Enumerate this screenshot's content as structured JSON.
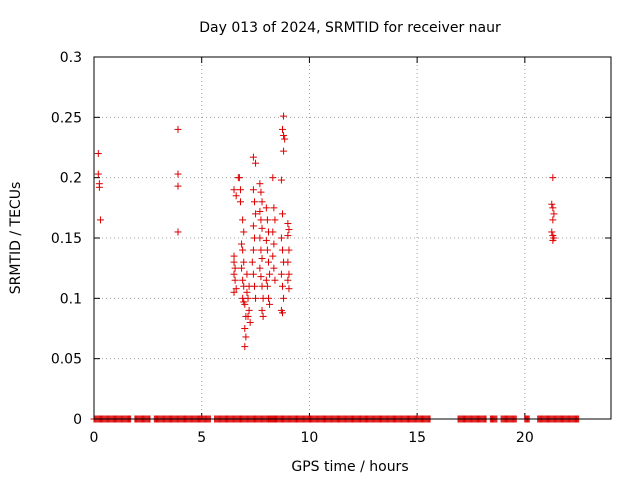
{
  "chart_data": {
    "type": "scatter",
    "title": "Day 013 of 2024, SRMTID for receiver naur",
    "xlabel": "GPS time / hours",
    "ylabel": "SRMTID / TECUs",
    "xlim": [
      0,
      24
    ],
    "ylim": [
      0,
      0.3
    ],
    "x_ticks": [
      0,
      5,
      10,
      15,
      20
    ],
    "x_tick_labels": [
      "0",
      "5",
      "10",
      "15",
      "20"
    ],
    "y_ticks": [
      0,
      0.05,
      0.1,
      0.15,
      0.2,
      0.25,
      0.3
    ],
    "y_tick_labels": [
      "0",
      "0.05",
      "0.1",
      "0.15",
      "0.2",
      "0.25",
      "0.3"
    ],
    "grid": true,
    "marker": "+",
    "color": "#dd0000",
    "series": [
      {
        "name": "SRMTID",
        "points": [
          [
            0.2,
            0.22
          ],
          [
            0.2,
            0.203
          ],
          [
            0.25,
            0.195
          ],
          [
            0.25,
            0.192
          ],
          [
            0.3,
            0.165
          ],
          [
            3.9,
            0.24
          ],
          [
            3.9,
            0.203
          ],
          [
            3.9,
            0.193
          ],
          [
            3.9,
            0.155
          ],
          [
            6.5,
            0.19
          ],
          [
            6.6,
            0.185
          ],
          [
            6.7,
            0.2
          ],
          [
            6.75,
            0.2
          ],
          [
            6.8,
            0.19
          ],
          [
            6.8,
            0.18
          ],
          [
            6.5,
            0.135
          ],
          [
            6.5,
            0.13
          ],
          [
            6.55,
            0.125
          ],
          [
            6.5,
            0.12
          ],
          [
            6.55,
            0.115
          ],
          [
            6.6,
            0.108
          ],
          [
            6.5,
            0.105
          ],
          [
            6.9,
            0.165
          ],
          [
            6.95,
            0.155
          ],
          [
            6.85,
            0.145
          ],
          [
            6.9,
            0.14
          ],
          [
            6.95,
            0.13
          ],
          [
            6.85,
            0.125
          ],
          [
            6.9,
            0.115
          ],
          [
            6.95,
            0.11
          ],
          [
            6.9,
            0.1
          ],
          [
            6.95,
            0.097
          ],
          [
            7.0,
            0.095
          ],
          [
            7.05,
            0.085
          ],
          [
            7.0,
            0.075
          ],
          [
            7.05,
            0.068
          ],
          [
            7.0,
            0.06
          ],
          [
            7.1,
            0.105
          ],
          [
            7.15,
            0.1
          ],
          [
            7.2,
            0.09
          ],
          [
            7.15,
            0.085
          ],
          [
            7.25,
            0.08
          ],
          [
            7.2,
            0.11
          ],
          [
            7.1,
            0.12
          ],
          [
            7.4,
            0.217
          ],
          [
            7.5,
            0.212
          ],
          [
            7.4,
            0.19
          ],
          [
            7.45,
            0.18
          ],
          [
            7.5,
            0.17
          ],
          [
            7.4,
            0.16
          ],
          [
            7.45,
            0.15
          ],
          [
            7.4,
            0.14
          ],
          [
            7.35,
            0.13
          ],
          [
            7.4,
            0.12
          ],
          [
            7.45,
            0.11
          ],
          [
            7.5,
            0.1
          ],
          [
            7.7,
            0.195
          ],
          [
            7.75,
            0.188
          ],
          [
            7.8,
            0.18
          ],
          [
            7.7,
            0.172
          ],
          [
            7.75,
            0.165
          ],
          [
            7.8,
            0.158
          ],
          [
            7.7,
            0.15
          ],
          [
            7.75,
            0.14
          ],
          [
            7.8,
            0.133
          ],
          [
            7.7,
            0.125
          ],
          [
            7.75,
            0.118
          ],
          [
            7.8,
            0.11
          ],
          [
            7.85,
            0.1
          ],
          [
            7.8,
            0.09
          ],
          [
            7.85,
            0.085
          ],
          [
            8.0,
            0.175
          ],
          [
            8.05,
            0.165
          ],
          [
            8.1,
            0.155
          ],
          [
            8.0,
            0.148
          ],
          [
            8.05,
            0.14
          ],
          [
            8.1,
            0.13
          ],
          [
            8.15,
            0.12
          ],
          [
            8.0,
            0.115
          ],
          [
            8.05,
            0.11
          ],
          [
            8.1,
            0.1
          ],
          [
            8.15,
            0.095
          ],
          [
            8.3,
            0.2
          ],
          [
            8.35,
            0.175
          ],
          [
            8.4,
            0.165
          ],
          [
            8.3,
            0.155
          ],
          [
            8.35,
            0.145
          ],
          [
            8.3,
            0.135
          ],
          [
            8.35,
            0.125
          ],
          [
            8.4,
            0.115
          ],
          [
            8.7,
            0.198
          ],
          [
            8.75,
            0.17
          ],
          [
            8.7,
            0.15
          ],
          [
            8.75,
            0.14
          ],
          [
            8.8,
            0.13
          ],
          [
            8.7,
            0.12
          ],
          [
            8.75,
            0.11
          ],
          [
            8.8,
            0.1
          ],
          [
            8.7,
            0.09
          ],
          [
            8.75,
            0.088
          ],
          [
            8.8,
            0.251
          ],
          [
            8.75,
            0.24
          ],
          [
            8.8,
            0.235
          ],
          [
            8.85,
            0.232
          ],
          [
            8.8,
            0.222
          ],
          [
            9.0,
            0.162
          ],
          [
            9.05,
            0.157
          ],
          [
            9.0,
            0.152
          ],
          [
            9.05,
            0.14
          ],
          [
            9.0,
            0.13
          ],
          [
            9.05,
            0.12
          ],
          [
            9.0,
            0.115
          ],
          [
            9.05,
            0.108
          ],
          [
            21.3,
            0.2
          ],
          [
            21.25,
            0.178
          ],
          [
            21.3,
            0.175
          ],
          [
            21.35,
            0.17
          ],
          [
            21.3,
            0.165
          ],
          [
            21.25,
            0.155
          ],
          [
            21.3,
            0.152
          ],
          [
            21.35,
            0.15
          ],
          [
            21.3,
            0.148
          ]
        ],
        "zero_runs": [
          [
            0.0,
            1.7
          ],
          [
            1.9,
            2.6
          ],
          [
            2.8,
            5.4
          ],
          [
            5.6,
            8.5
          ],
          [
            8.2,
            10.0
          ],
          [
            10.0,
            12.4
          ],
          [
            12.4,
            15.6
          ],
          [
            16.9,
            18.2
          ],
          [
            18.4,
            18.7
          ],
          [
            18.9,
            19.6
          ],
          [
            20.0,
            20.2
          ],
          [
            20.6,
            22.5
          ]
        ]
      }
    ]
  }
}
